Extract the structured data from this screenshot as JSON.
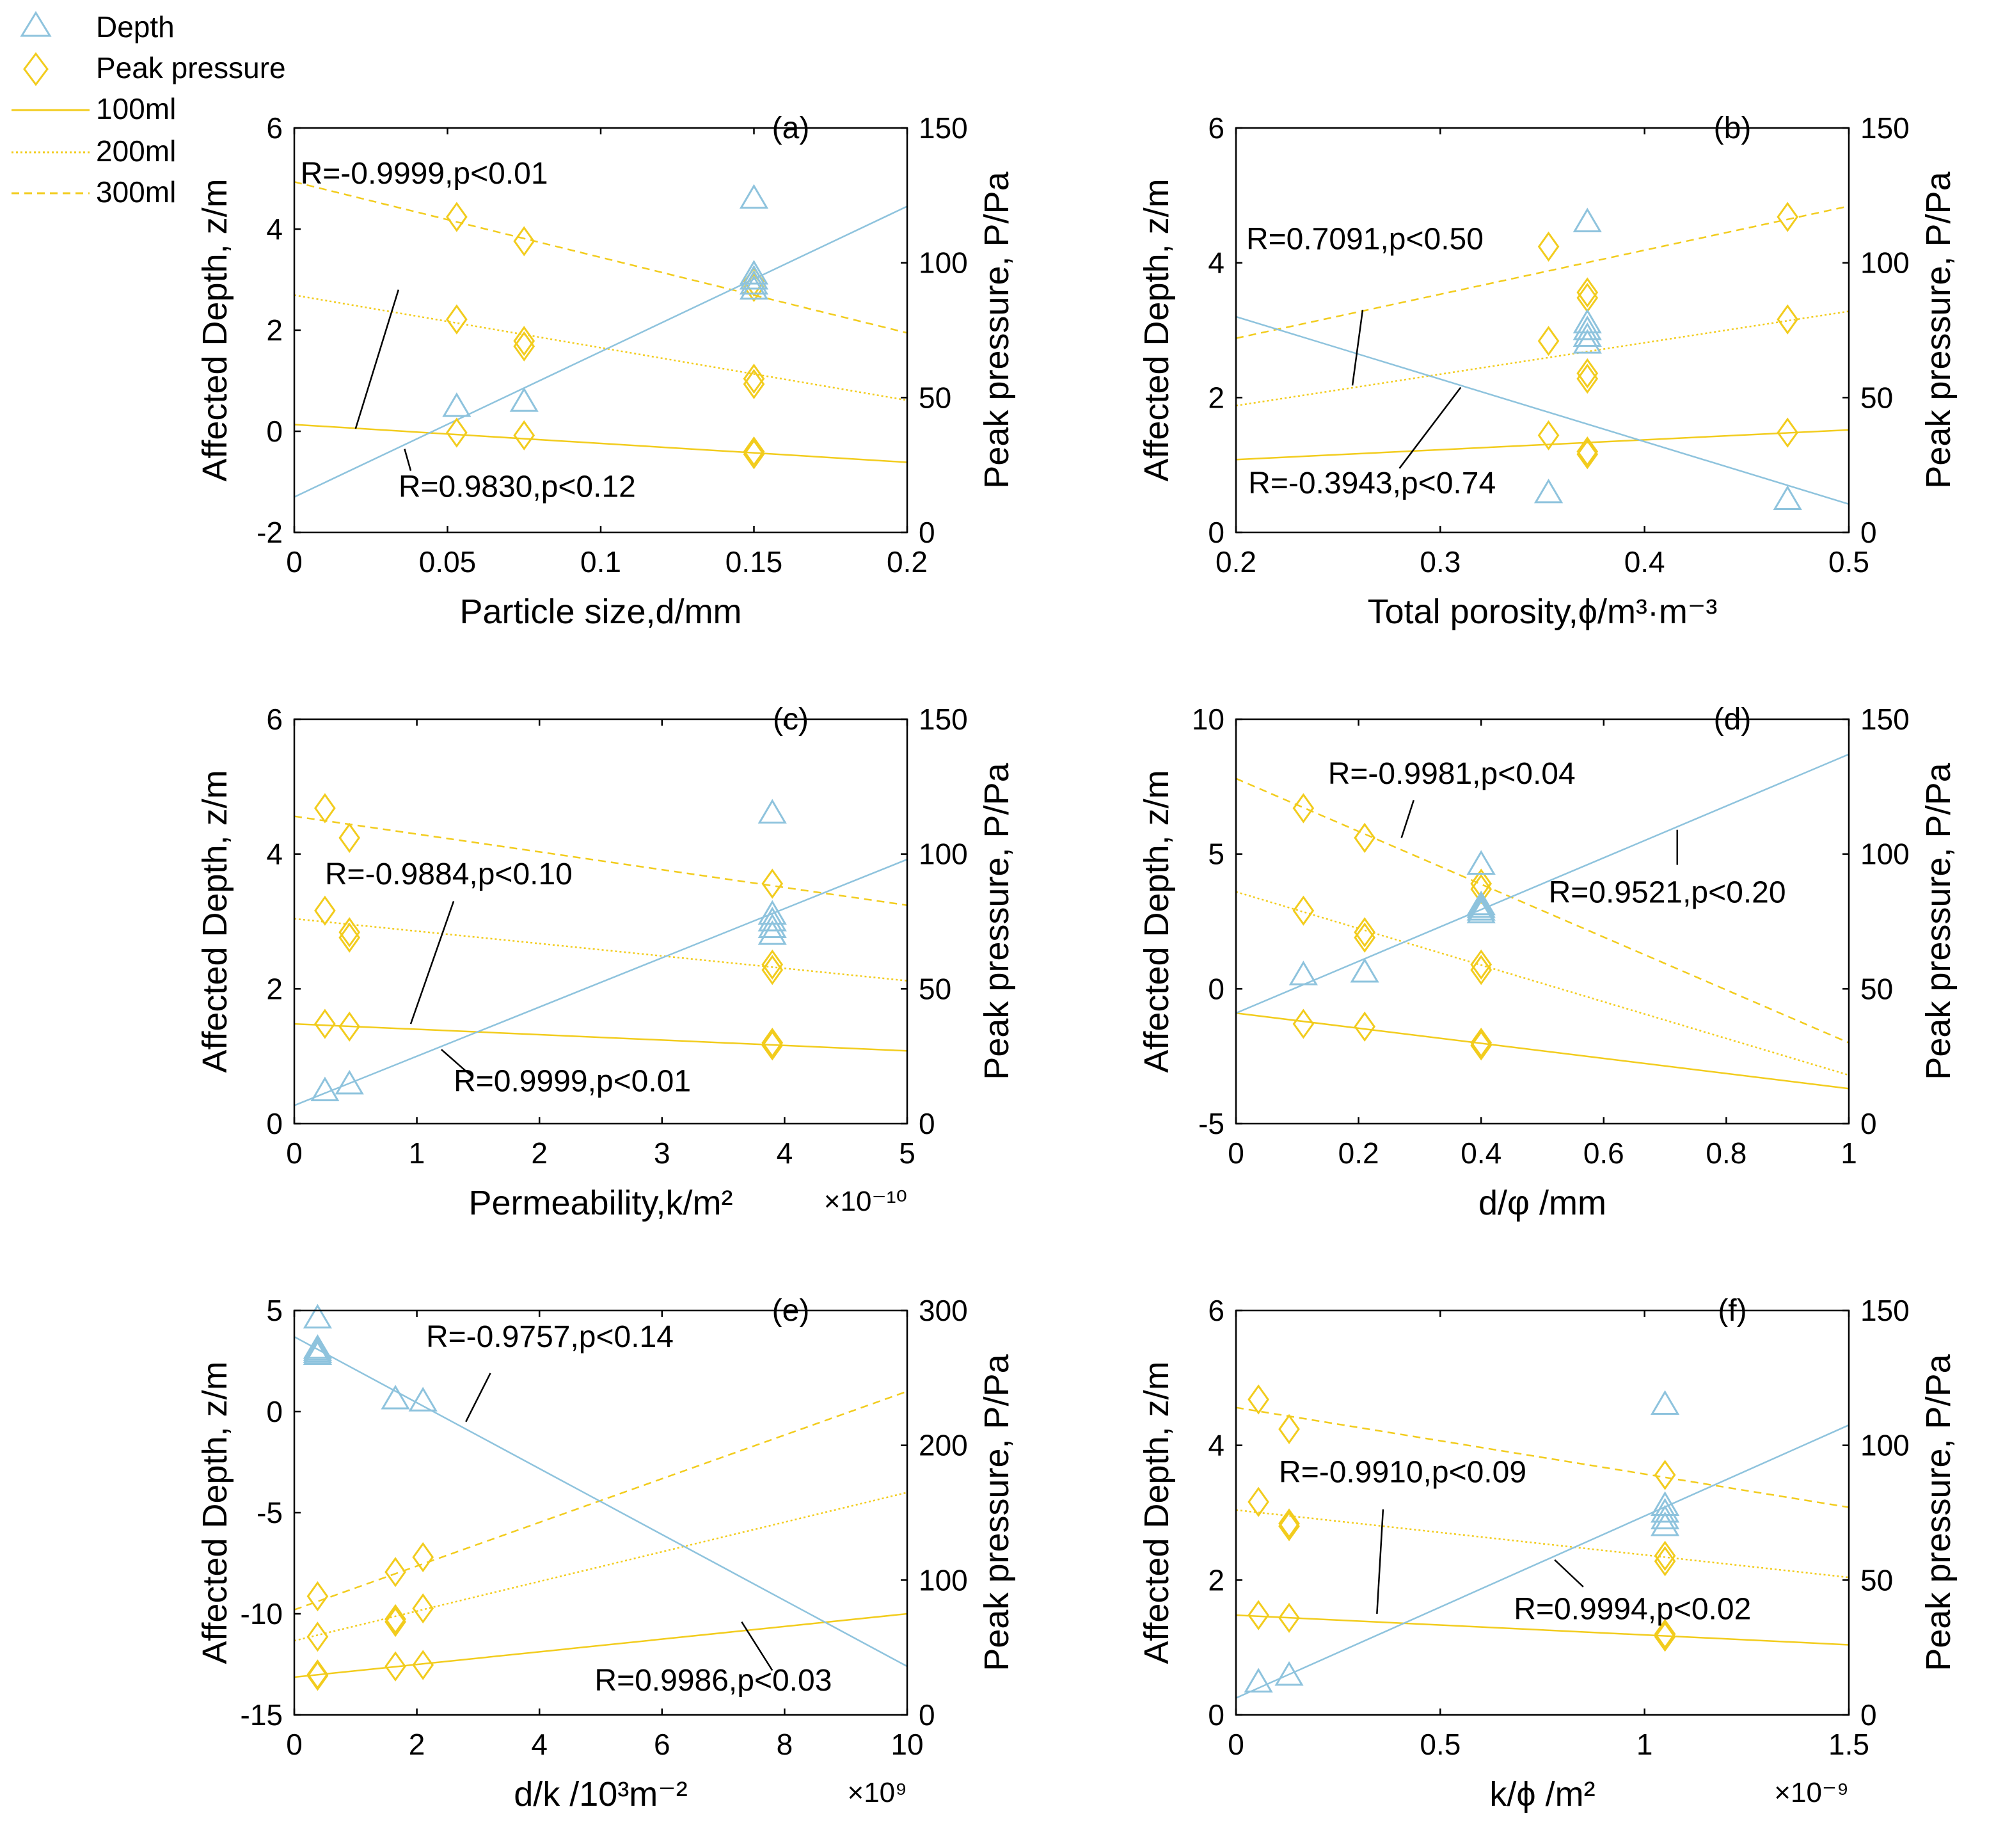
{
  "colors": {
    "depth": "#8ec3dd",
    "pressure": "#f2cc1d",
    "axis": "#000000"
  },
  "legend": {
    "items": [
      {
        "label": "Depth",
        "kind": "triangle"
      },
      {
        "label": "Peak pressure",
        "kind": "diamond"
      },
      {
        "label": "100ml",
        "kind": "solid"
      },
      {
        "label": "200ml",
        "kind": "dotted"
      },
      {
        "label": "300ml",
        "kind": "dashed"
      }
    ]
  },
  "chart_data": [
    {
      "type": "scatter",
      "panel": "(a)",
      "xlabel": "Particle size,d/mm",
      "ylabel_left": "Affected Depth, z/m",
      "ylabel_right": "Peak pressure, P/Pa",
      "xlim": [
        0,
        0.2
      ],
      "xticks": [
        0,
        0.05,
        0.1,
        0.15,
        0.2
      ],
      "xtick_labels": [
        "0",
        "0.05",
        "0.1",
        "0.15",
        "0.2"
      ],
      "ylim_left": [
        -2,
        6
      ],
      "yticks_left": [
        -2,
        0,
        2,
        4,
        6
      ],
      "ylim_right": [
        0,
        150
      ],
      "yticks_right": [
        0,
        50,
        100,
        150
      ],
      "exponent": "",
      "depth_points": [
        [
          0.053,
          0.48
        ],
        [
          0.075,
          0.58
        ],
        [
          0.15,
          4.6
        ],
        [
          0.15,
          3.1
        ],
        [
          0.15,
          3.0
        ],
        [
          0.15,
          2.9
        ],
        [
          0.15,
          2.8
        ]
      ],
      "depth_fit": [
        [
          0,
          -1.3
        ],
        [
          0.2,
          4.45
        ]
      ],
      "pressure_points": {
        "100ml": [
          [
            0.053,
            37
          ],
          [
            0.075,
            36
          ],
          [
            0.15,
            30
          ],
          [
            0.15,
            29
          ]
        ],
        "200ml": [
          [
            0.053,
            79
          ],
          [
            0.075,
            71
          ],
          [
            0.075,
            69
          ],
          [
            0.15,
            57
          ],
          [
            0.15,
            55
          ]
        ],
        "300ml": [
          [
            0.053,
            117
          ],
          [
            0.075,
            108
          ],
          [
            0.15,
            93
          ],
          [
            0.15,
            91
          ]
        ]
      },
      "pressure_fits": {
        "100ml": [
          [
            0,
            40
          ],
          [
            0.2,
            26
          ]
        ],
        "200ml": [
          [
            0,
            88
          ],
          [
            0.2,
            49
          ]
        ],
        "300ml": [
          [
            0,
            130
          ],
          [
            0.2,
            74
          ]
        ]
      },
      "annotations": [
        {
          "text": "R=-0.9999,p<0.01",
          "x": 0.002,
          "y": 4.9,
          "ax": 0.034,
          "ay": 2.8,
          "bx": 0.02,
          "by": 0.05
        },
        {
          "text": "R=0.9830,p<0.12",
          "x": 0.034,
          "y": -1.3,
          "ax": 0.038,
          "ay": -0.78,
          "bx": 0.036,
          "by": -0.35
        }
      ]
    },
    {
      "type": "scatter",
      "panel": "(b)",
      "xlabel": "Total porosity,ϕ/m³·m⁻³",
      "ylabel_left": "Affected Depth, z/m",
      "ylabel_right": "Peak pressure, P/Pa",
      "xlim": [
        0.2,
        0.5
      ],
      "xticks": [
        0.2,
        0.3,
        0.4,
        0.5
      ],
      "xtick_labels": [
        "0.2",
        "0.3",
        "0.4",
        "0.5"
      ],
      "ylim_left": [
        0,
        6
      ],
      "yticks_left": [
        0,
        2,
        4,
        6
      ],
      "ylim_right": [
        0,
        150
      ],
      "yticks_right": [
        0,
        50,
        100,
        150
      ],
      "exponent": "",
      "depth_points": [
        [
          0.353,
          0.58
        ],
        [
          0.372,
          4.6
        ],
        [
          0.372,
          3.1
        ],
        [
          0.372,
          3.0
        ],
        [
          0.372,
          2.9
        ],
        [
          0.372,
          2.8
        ],
        [
          0.47,
          0.48
        ]
      ],
      "depth_fit": [
        [
          0.2,
          3.2
        ],
        [
          0.5,
          0.42
        ]
      ],
      "pressure_points": {
        "100ml": [
          [
            0.353,
            36
          ],
          [
            0.372,
            30
          ],
          [
            0.372,
            29
          ],
          [
            0.47,
            37
          ]
        ],
        "200ml": [
          [
            0.353,
            71
          ],
          [
            0.372,
            59
          ],
          [
            0.372,
            57
          ],
          [
            0.47,
            79
          ]
        ],
        "300ml": [
          [
            0.353,
            106
          ],
          [
            0.372,
            89
          ],
          [
            0.372,
            87
          ],
          [
            0.47,
            117
          ]
        ]
      },
      "pressure_fits": {
        "100ml": [
          [
            0.2,
            27
          ],
          [
            0.5,
            38
          ]
        ],
        "200ml": [
          [
            0.2,
            47
          ],
          [
            0.5,
            82
          ]
        ],
        "300ml": [
          [
            0.2,
            72
          ],
          [
            0.5,
            121
          ]
        ]
      },
      "annotations": [
        {
          "text": "R=0.7091,p<0.50",
          "x": 0.205,
          "y": 4.2,
          "ax": 0.262,
          "ay": 3.3,
          "bx": 0.257,
          "by": 2.18
        },
        {
          "text": "R=-0.3943,p<0.74",
          "x": 0.206,
          "y": 0.58,
          "ax": 0.28,
          "ay": 0.95,
          "bx": 0.31,
          "by": 2.15
        }
      ]
    },
    {
      "type": "scatter",
      "panel": "(c)",
      "xlabel": "Permeability,k/m²",
      "ylabel_left": "Affected Depth, z/m",
      "ylabel_right": "Peak pressure, P/Pa",
      "xlim": [
        0,
        5
      ],
      "xticks": [
        0,
        1,
        2,
        3,
        4,
        5
      ],
      "xtick_labels": [
        "0",
        "1",
        "2",
        "3",
        "4",
        "5"
      ],
      "ylim_left": [
        0,
        6
      ],
      "yticks_left": [
        0,
        2,
        4,
        6
      ],
      "ylim_right": [
        0,
        150
      ],
      "yticks_right": [
        0,
        50,
        100,
        150
      ],
      "exponent": "×10⁻¹⁰",
      "depth_points": [
        [
          0.25,
          0.48
        ],
        [
          0.45,
          0.58
        ],
        [
          3.9,
          4.6
        ],
        [
          3.9,
          3.1
        ],
        [
          3.9,
          3.0
        ],
        [
          3.9,
          2.9
        ],
        [
          3.9,
          2.8
        ]
      ],
      "depth_fit": [
        [
          0,
          0.27
        ],
        [
          5,
          3.92
        ]
      ],
      "pressure_points": {
        "100ml": [
          [
            0.25,
            37
          ],
          [
            0.45,
            36
          ],
          [
            3.9,
            30
          ],
          [
            3.9,
            29
          ]
        ],
        "200ml": [
          [
            0.25,
            79
          ],
          [
            0.45,
            71
          ],
          [
            0.45,
            69
          ],
          [
            3.9,
            59
          ],
          [
            3.9,
            57
          ]
        ],
        "300ml": [
          [
            0.25,
            117
          ],
          [
            0.45,
            106
          ],
          [
            3.9,
            89
          ]
        ]
      },
      "pressure_fits": {
        "100ml": [
          [
            0,
            37
          ],
          [
            5,
            27
          ]
        ],
        "200ml": [
          [
            0,
            76
          ],
          [
            5,
            53
          ]
        ],
        "300ml": [
          [
            0,
            114
          ],
          [
            5,
            81
          ]
        ]
      },
      "annotations": [
        {
          "text": "R=-0.9884,p<0.10",
          "x": 0.25,
          "y": 3.55,
          "ax": 1.3,
          "ay": 3.3,
          "bx": 0.95,
          "by": 1.48
        },
        {
          "text": "R=0.9999,p<0.01",
          "x": 1.3,
          "y": 0.48,
          "ax": 1.45,
          "ay": 0.7,
          "bx": 1.2,
          "by": 1.1
        }
      ]
    },
    {
      "type": "scatter",
      "panel": "(d)",
      "xlabel": "d/φ /mm",
      "ylabel_left": "Affected Depth, z/m",
      "ylabel_right": "Peak pressure, P/Pa",
      "xlim": [
        0,
        1
      ],
      "xticks": [
        0,
        0.2,
        0.4,
        0.6,
        0.8,
        1
      ],
      "xtick_labels": [
        "0",
        "0.2",
        "0.4",
        "0.6",
        "0.8",
        "1"
      ],
      "ylim_left": [
        -5,
        10
      ],
      "yticks_left": [
        -5,
        0,
        5,
        10
      ],
      "ylim_right": [
        0,
        150
      ],
      "yticks_right": [
        0,
        50,
        100,
        150
      ],
      "exponent": "",
      "depth_points": [
        [
          0.11,
          0.5
        ],
        [
          0.21,
          0.6
        ],
        [
          0.4,
          4.6
        ],
        [
          0.4,
          3.1
        ],
        [
          0.4,
          3.0
        ],
        [
          0.4,
          2.9
        ],
        [
          0.4,
          2.8
        ]
      ],
      "depth_fit": [
        [
          0,
          -0.9
        ],
        [
          1,
          8.7
        ]
      ],
      "pressure_points": {
        "100ml": [
          [
            0.11,
            37
          ],
          [
            0.21,
            36
          ],
          [
            0.4,
            30
          ],
          [
            0.4,
            29
          ]
        ],
        "200ml": [
          [
            0.11,
            79
          ],
          [
            0.21,
            71
          ],
          [
            0.21,
            69
          ],
          [
            0.4,
            59
          ],
          [
            0.4,
            57
          ]
        ],
        "300ml": [
          [
            0.11,
            117
          ],
          [
            0.21,
            106
          ],
          [
            0.4,
            89
          ],
          [
            0.4,
            87
          ]
        ]
      },
      "pressure_fits": {
        "100ml": [
          [
            0,
            41
          ],
          [
            1,
            13
          ]
        ],
        "200ml": [
          [
            0,
            86
          ],
          [
            1,
            18
          ]
        ],
        "300ml": [
          [
            0,
            128
          ],
          [
            1,
            30
          ]
        ]
      },
      "annotations": [
        {
          "text": "R=-0.9981,p<0.04",
          "x": 0.15,
          "y": 7.6,
          "ax": 0.29,
          "ay": 7.0,
          "bx": 0.27,
          "by": 5.6
        },
        {
          "text": "R=0.9521,p<0.20",
          "x": 0.51,
          "y": 3.2,
          "ax": 0.72,
          "ay": 4.6,
          "bx": 0.72,
          "by": 5.9
        }
      ]
    },
    {
      "type": "scatter",
      "panel": "(e)",
      "xlabel": "d/k /10³m⁻²",
      "ylabel_left": "Affected Depth, z/m",
      "ylabel_right": "Peak pressure, P/Pa",
      "xlim": [
        0,
        10
      ],
      "xticks": [
        0,
        2,
        4,
        6,
        8,
        10
      ],
      "xtick_labels": [
        "0",
        "2",
        "4",
        "6",
        "8",
        "10"
      ],
      "ylim_left": [
        -15,
        5
      ],
      "yticks_left": [
        -15,
        -10,
        -5,
        0,
        5
      ],
      "ylim_right": [
        0,
        300
      ],
      "yticks_right": [
        0,
        100,
        200,
        300
      ],
      "exponent": "×10⁹",
      "depth_points": [
        [
          0.38,
          4.6
        ],
        [
          0.38,
          3.1
        ],
        [
          0.38,
          3.0
        ],
        [
          0.38,
          2.9
        ],
        [
          0.38,
          2.8
        ],
        [
          1.65,
          0.6
        ],
        [
          2.1,
          0.5
        ]
      ],
      "depth_fit": [
        [
          0,
          3.7
        ],
        [
          10,
          -12.6
        ]
      ],
      "pressure_points": {
        "100ml": [
          [
            0.38,
            30
          ],
          [
            0.38,
            29
          ],
          [
            1.65,
            36
          ],
          [
            2.1,
            37
          ]
        ],
        "200ml": [
          [
            0.38,
            58
          ],
          [
            1.65,
            69
          ],
          [
            1.65,
            71
          ],
          [
            2.1,
            79
          ]
        ],
        "300ml": [
          [
            0.38,
            88
          ],
          [
            1.65,
            106
          ],
          [
            2.1,
            117
          ]
        ]
      },
      "pressure_fits": {
        "100ml": [
          [
            0,
            28
          ],
          [
            10,
            75
          ]
        ],
        "200ml": [
          [
            0,
            55
          ],
          [
            10,
            165
          ]
        ],
        "300ml": [
          [
            0,
            78
          ],
          [
            10,
            240
          ]
        ]
      },
      "annotations": [
        {
          "text": "R=-0.9757,p<0.14",
          "x": 2.15,
          "y": 3.2,
          "ax": 3.2,
          "ay": 1.9,
          "bx": 2.8,
          "by": -0.5
        },
        {
          "text": "R=0.9986,p<0.03",
          "x": 4.9,
          "y": -13.8,
          "ax": 7.8,
          "ay": -12.8,
          "bx": 7.3,
          "by": -10.4
        }
      ]
    },
    {
      "type": "scatter",
      "panel": "(f)",
      "xlabel": "k/ϕ /m²",
      "ylabel_left": "Affected Depth, z/m",
      "ylabel_right": "Peak pressure, P/Pa",
      "xlim": [
        0,
        1.5
      ],
      "xticks": [
        0,
        0.5,
        1,
        1.5
      ],
      "xtick_labels": [
        "0",
        "0.5",
        "1",
        "1.5"
      ],
      "ylim_left": [
        0,
        6
      ],
      "yticks_left": [
        0,
        2,
        4,
        6
      ],
      "ylim_right": [
        0,
        150
      ],
      "yticks_right": [
        0,
        50,
        100,
        150
      ],
      "exponent": "×10⁻⁹",
      "depth_points": [
        [
          0.055,
          0.48
        ],
        [
          0.13,
          0.58
        ],
        [
          1.05,
          4.6
        ],
        [
          1.05,
          3.1
        ],
        [
          1.05,
          3.0
        ],
        [
          1.05,
          2.9
        ],
        [
          1.05,
          2.8
        ]
      ],
      "depth_fit": [
        [
          0,
          0.25
        ],
        [
          1.5,
          4.3
        ]
      ],
      "pressure_points": {
        "100ml": [
          [
            0.055,
            37
          ],
          [
            0.13,
            36
          ],
          [
            1.05,
            30
          ],
          [
            1.05,
            29
          ]
        ],
        "200ml": [
          [
            0.055,
            79
          ],
          [
            0.13,
            71
          ],
          [
            0.13,
            70
          ],
          [
            1.05,
            59
          ],
          [
            1.05,
            57
          ]
        ],
        "300ml": [
          [
            0.055,
            117
          ],
          [
            0.13,
            106
          ],
          [
            1.05,
            89
          ]
        ]
      },
      "pressure_fits": {
        "100ml": [
          [
            0,
            37
          ],
          [
            1.5,
            26
          ]
        ],
        "200ml": [
          [
            0,
            76
          ],
          [
            1.5,
            51
          ]
        ],
        "300ml": [
          [
            0,
            114
          ],
          [
            1.5,
            77
          ]
        ]
      },
      "annotations": [
        {
          "text": "R=-0.9910,p<0.09",
          "x": 0.105,
          "y": 3.45,
          "ax": 0.36,
          "ay": 3.05,
          "bx": 0.345,
          "by": 1.5
        },
        {
          "text": "R=0.9994,p<0.02",
          "x": 0.68,
          "y": 1.42,
          "ax": 0.85,
          "ay": 1.9,
          "bx": 0.78,
          "by": 2.3
        }
      ]
    }
  ]
}
